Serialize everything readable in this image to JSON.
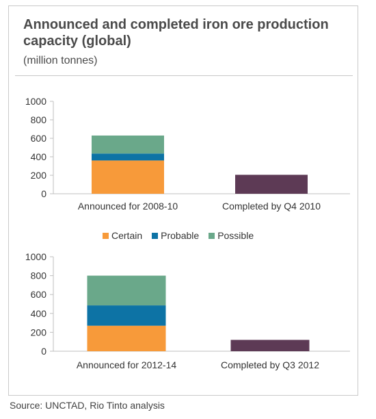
{
  "header": {
    "title": "Announced and completed iron ore production capacity (global)",
    "subtitle": "(million tonnes)"
  },
  "legend": {
    "items": [
      {
        "label": "Certain",
        "color": "#f79a3a"
      },
      {
        "label": "Probable",
        "color": "#0d73a5"
      },
      {
        "label": "Possible",
        "color": "#6aa88a"
      }
    ]
  },
  "colors": {
    "completed": "#5d3a55",
    "axis": "#bfbfbf"
  },
  "footer": {
    "source": "Source: UNCTAD, Rio Tinto analysis"
  },
  "chart_data": [
    {
      "type": "bar",
      "stacked": true,
      "categories": [
        "Announced for 2008-10",
        "Completed by Q4 2010"
      ],
      "series": [
        {
          "name": "Certain",
          "values": [
            360,
            0
          ]
        },
        {
          "name": "Probable",
          "values": [
            75,
            0
          ]
        },
        {
          "name": "Possible",
          "values": [
            195,
            0
          ]
        },
        {
          "name": "",
          "values": [
            0,
            205
          ]
        }
      ],
      "ylim": [
        0,
        1000
      ],
      "yticks": [
        0,
        200,
        400,
        600,
        800,
        1000
      ],
      "grid": false
    },
    {
      "type": "bar",
      "stacked": true,
      "categories": [
        "Announced for 2012-14",
        "Completed by Q3 2012"
      ],
      "series": [
        {
          "name": "Certain",
          "values": [
            270,
            0
          ]
        },
        {
          "name": "Probable",
          "values": [
            215,
            0
          ]
        },
        {
          "name": "Possible",
          "values": [
            315,
            0
          ]
        },
        {
          "name": "",
          "values": [
            0,
            120
          ]
        }
      ],
      "ylim": [
        0,
        1000
      ],
      "yticks": [
        0,
        200,
        400,
        600,
        800,
        1000
      ],
      "grid": false
    }
  ]
}
